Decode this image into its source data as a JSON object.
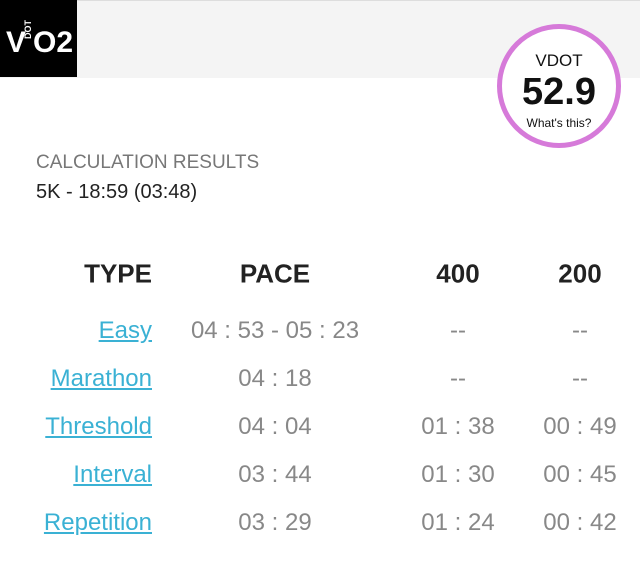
{
  "logo": {
    "v": "V",
    "dot": "DOT",
    "o2": "O2"
  },
  "vdot": {
    "label": "VDOT",
    "value": "52.9",
    "help": "What's this?"
  },
  "results": {
    "title": "CALCULATION RESULTS",
    "race": "5K - 18:59 (03:48)"
  },
  "table": {
    "headers": [
      "TYPE",
      "PACE",
      "400",
      "200"
    ],
    "rows": [
      [
        "Easy",
        "04 : 53 - 05 : 23",
        "--",
        "--"
      ],
      [
        "Marathon",
        "04 : 18",
        "--",
        "--"
      ],
      [
        "Threshold",
        "04 : 04",
        "01 : 38",
        "00 : 49"
      ],
      [
        "Interval",
        "03 : 44",
        "01 : 30",
        "00 : 45"
      ],
      [
        "Repetition",
        "03 : 29",
        "01 : 24",
        "00 : 42"
      ]
    ]
  }
}
